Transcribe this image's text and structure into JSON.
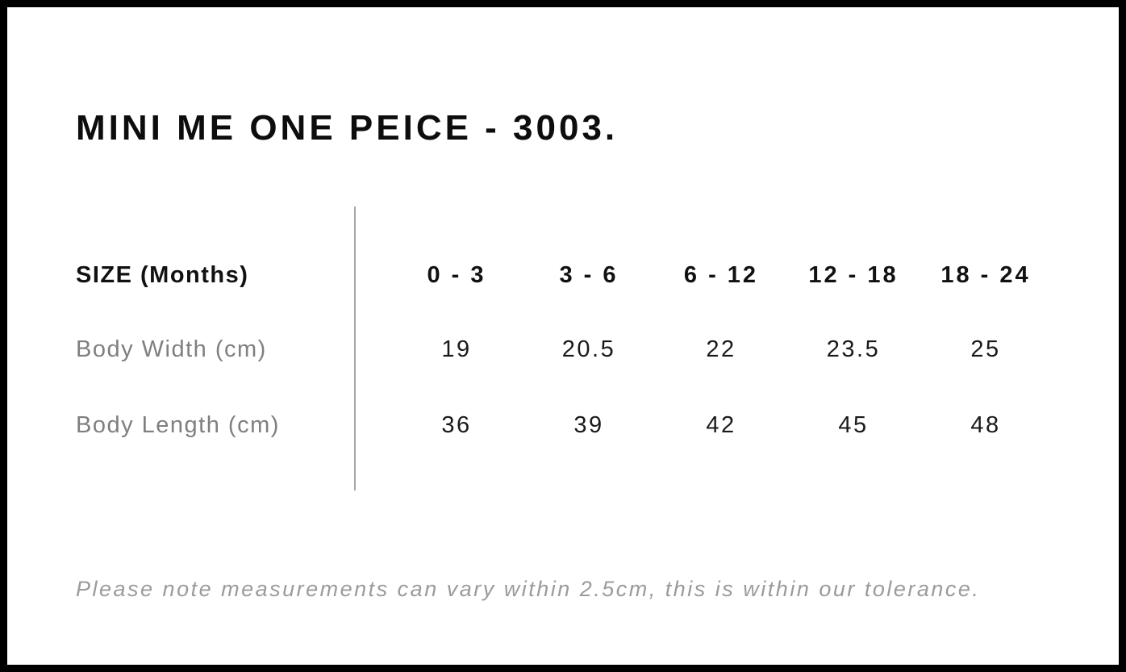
{
  "title": "MINI ME ONE PEICE - 3003.",
  "table": {
    "header_label": "SIZE (Months)",
    "columns": [
      "0 - 3",
      "3 - 6",
      "6 - 12",
      "12 - 18",
      "18 - 24"
    ],
    "rows": [
      {
        "label": "Body Width (cm)",
        "values": [
          "19",
          "20.5",
          "22",
          "23.5",
          "25"
        ]
      },
      {
        "label": "Body Length (cm)",
        "values": [
          "36",
          "39",
          "42",
          "45",
          "48"
        ]
      }
    ]
  },
  "note": "Please note measurements can vary within 2.5cm, this is within our tolerance.",
  "colors": {
    "frame": "#000000",
    "background": "#ffffff",
    "title_text": "#0d0d0d",
    "header_text": "#111111",
    "row_label_text": "#7f7f7f",
    "value_text": "#1a1a1a",
    "note_text": "#9b9b9b",
    "divider": "#a6a6a6"
  }
}
